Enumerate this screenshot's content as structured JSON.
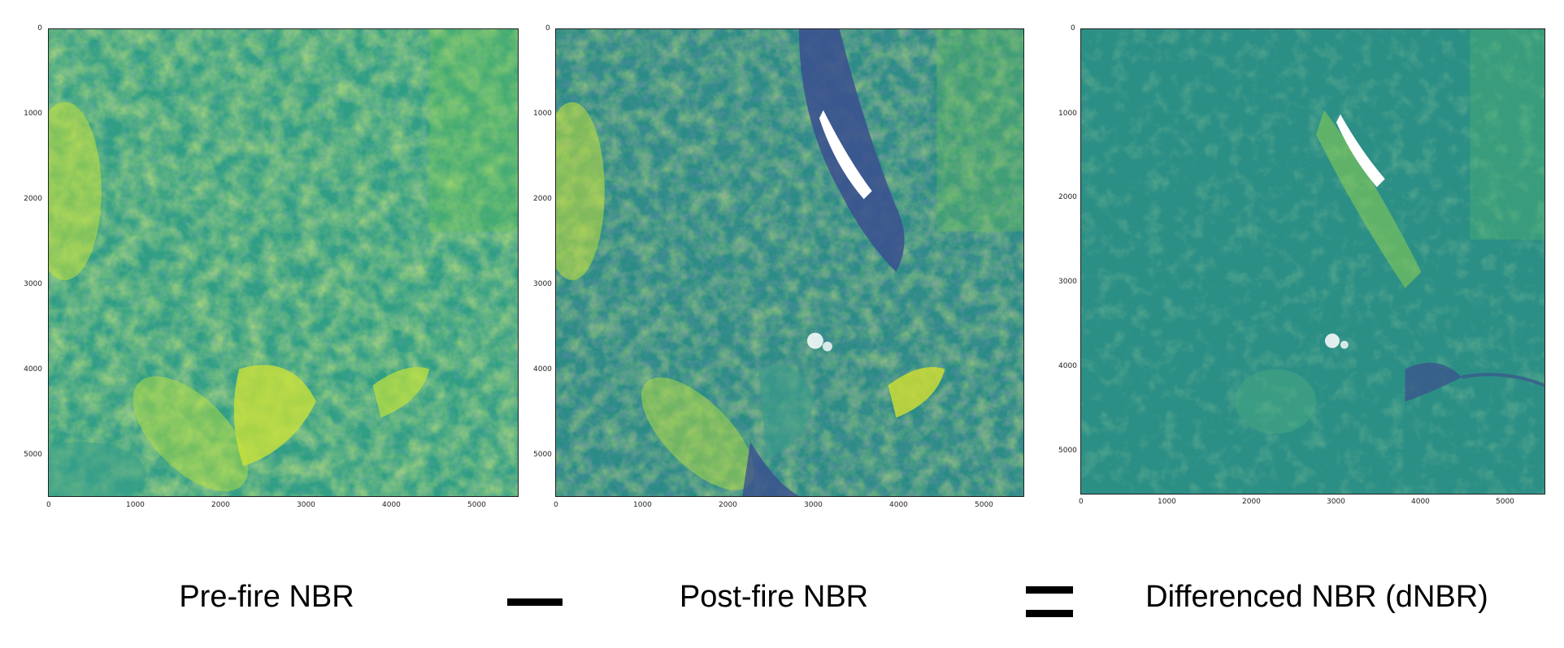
{
  "panels": [
    {
      "id": "prefire",
      "caption": "Pre-fire NBR",
      "y_ticks": [
        "0",
        "1000",
        "2000",
        "3000",
        "4000",
        "5000"
      ],
      "x_ticks": [
        "0",
        "1000",
        "2000",
        "3000",
        "4000",
        "5000"
      ],
      "base_color": "#2f9e83"
    },
    {
      "id": "postfire",
      "caption": "Post-fire NBR",
      "y_ticks": [
        "0",
        "1000",
        "2000",
        "3000",
        "4000",
        "5000"
      ],
      "x_ticks": [
        "0",
        "1000",
        "2000",
        "3000",
        "4000",
        "5000"
      ],
      "base_color": "#2a8c84"
    },
    {
      "id": "dnbr",
      "caption": "Differenced NBR (dNBR)",
      "y_ticks": [
        "0",
        "1000",
        "2000",
        "3000",
        "4000",
        "5000"
      ],
      "x_ticks": [
        "0",
        "1000",
        "2000",
        "3000",
        "4000",
        "5000"
      ],
      "base_color": "#2c8f86"
    }
  ],
  "operators": {
    "minus": "minus",
    "equals": "equals"
  },
  "colormap": [
    "#440154",
    "#3b528b",
    "#21918c",
    "#5ec962",
    "#fde725"
  ]
}
